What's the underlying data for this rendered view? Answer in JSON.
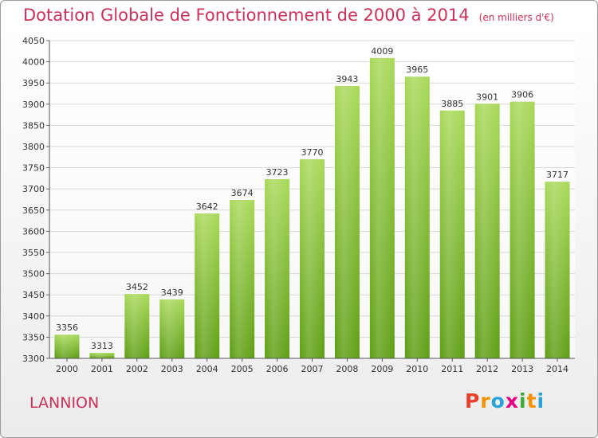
{
  "title": "Dotation Globale de Fonctionnement de 2000 à 2014",
  "title_unit": "(en milliers d'€)",
  "location": "LANNION",
  "logo_text": "Proxiti",
  "colors": {
    "title": "#c8325a",
    "bar_top": "#a9d95a",
    "bar_bottom": "#5e9e15",
    "grid": "#d9d9d9"
  },
  "chart_data": {
    "type": "bar",
    "title": "Dotation Globale de Fonctionnement de 2000 à 2014",
    "xlabel": "",
    "ylabel": "",
    "ylim": [
      3300,
      4050
    ],
    "ytick_step": 50,
    "grid": true,
    "categories": [
      "2000",
      "2001",
      "2002",
      "2003",
      "2004",
      "2005",
      "2006",
      "2007",
      "2008",
      "2009",
      "2010",
      "2011",
      "2012",
      "2013",
      "2014"
    ],
    "values": [
      3356,
      3313,
      3452,
      3439,
      3642,
      3674,
      3723,
      3770,
      3943,
      4009,
      3965,
      3885,
      3901,
      3906,
      3717
    ]
  }
}
